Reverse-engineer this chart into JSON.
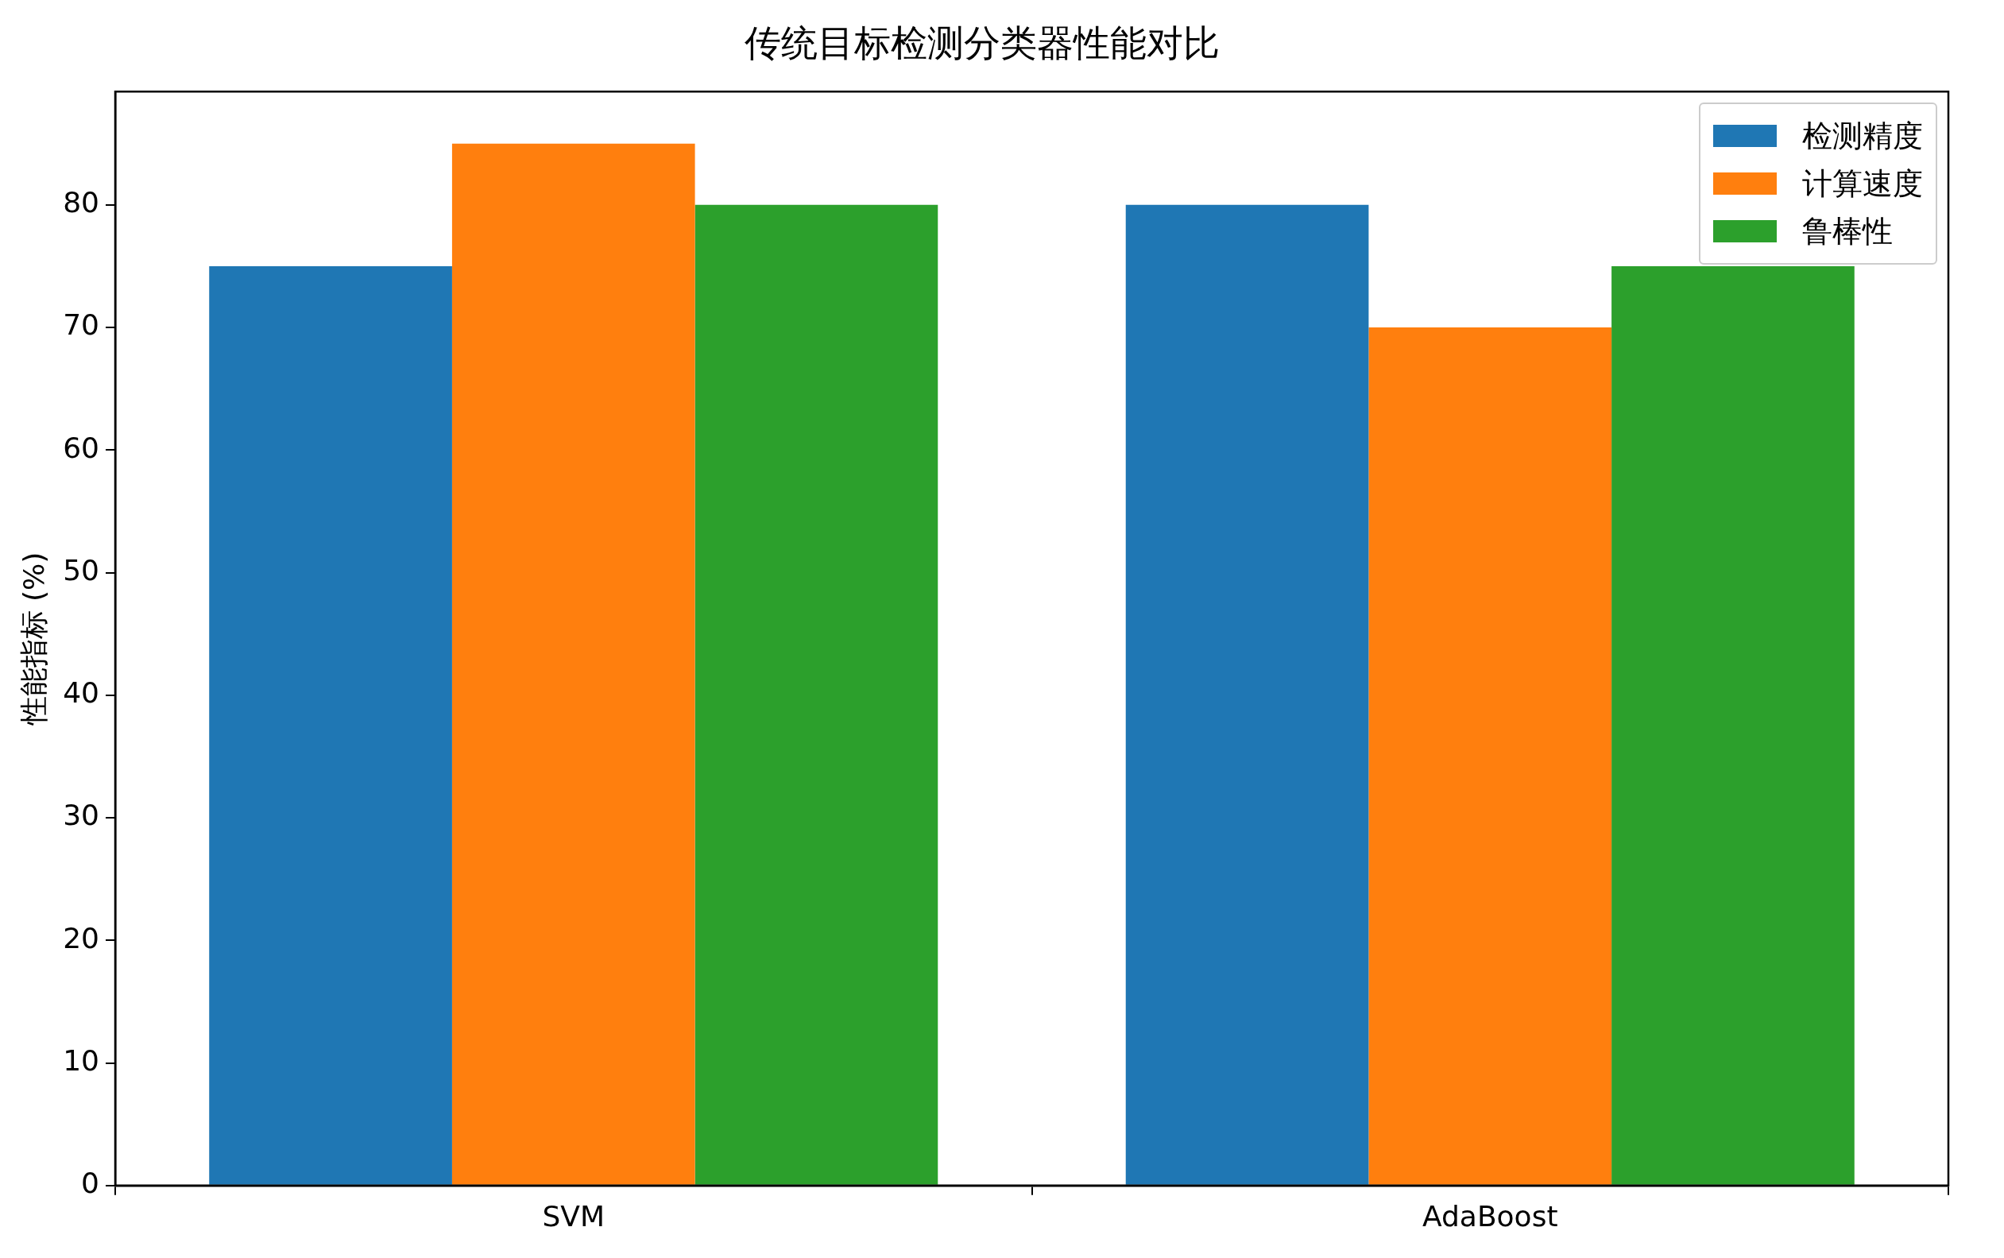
{
  "chart_data": {
    "type": "bar",
    "title": "传统目标检测分类器性能对比",
    "ylabel": "性能指标 (%)",
    "categories": [
      "SVM",
      "AdaBoost"
    ],
    "series": [
      {
        "name": "检测精度",
        "color": "#1f77b4",
        "values": [
          75,
          80
        ]
      },
      {
        "name": "计算速度",
        "color": "#ff7f0e",
        "values": [
          85,
          70
        ]
      },
      {
        "name": "鲁棒性",
        "color": "#2ca02c",
        "values": [
          80,
          75
        ]
      }
    ],
    "ylim": [
      0,
      89.25
    ],
    "yticks": [
      0,
      10,
      20,
      30,
      40,
      50,
      60,
      70,
      80
    ],
    "grid": false,
    "legend": "top right"
  }
}
